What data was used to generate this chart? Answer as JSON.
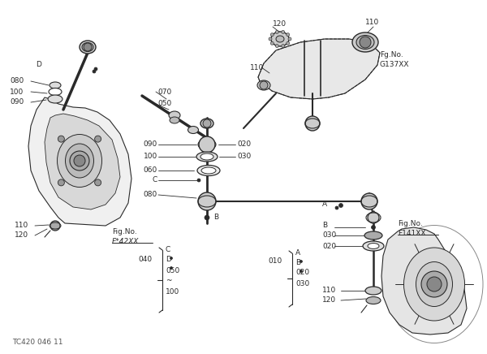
{
  "bg_color": "#ffffff",
  "line_color": "#2a2a2a",
  "text_color": "#2a2a2a",
  "title_text": "TC420 046 11",
  "fig_no_left": "Fig.No.",
  "fig_no_left2": "F*42XX",
  "fig_no_right": "Fig.No.",
  "fig_no_right2": "F141XX",
  "fig_no_top": "Fg.No.",
  "fig_no_top2": "G137XX"
}
